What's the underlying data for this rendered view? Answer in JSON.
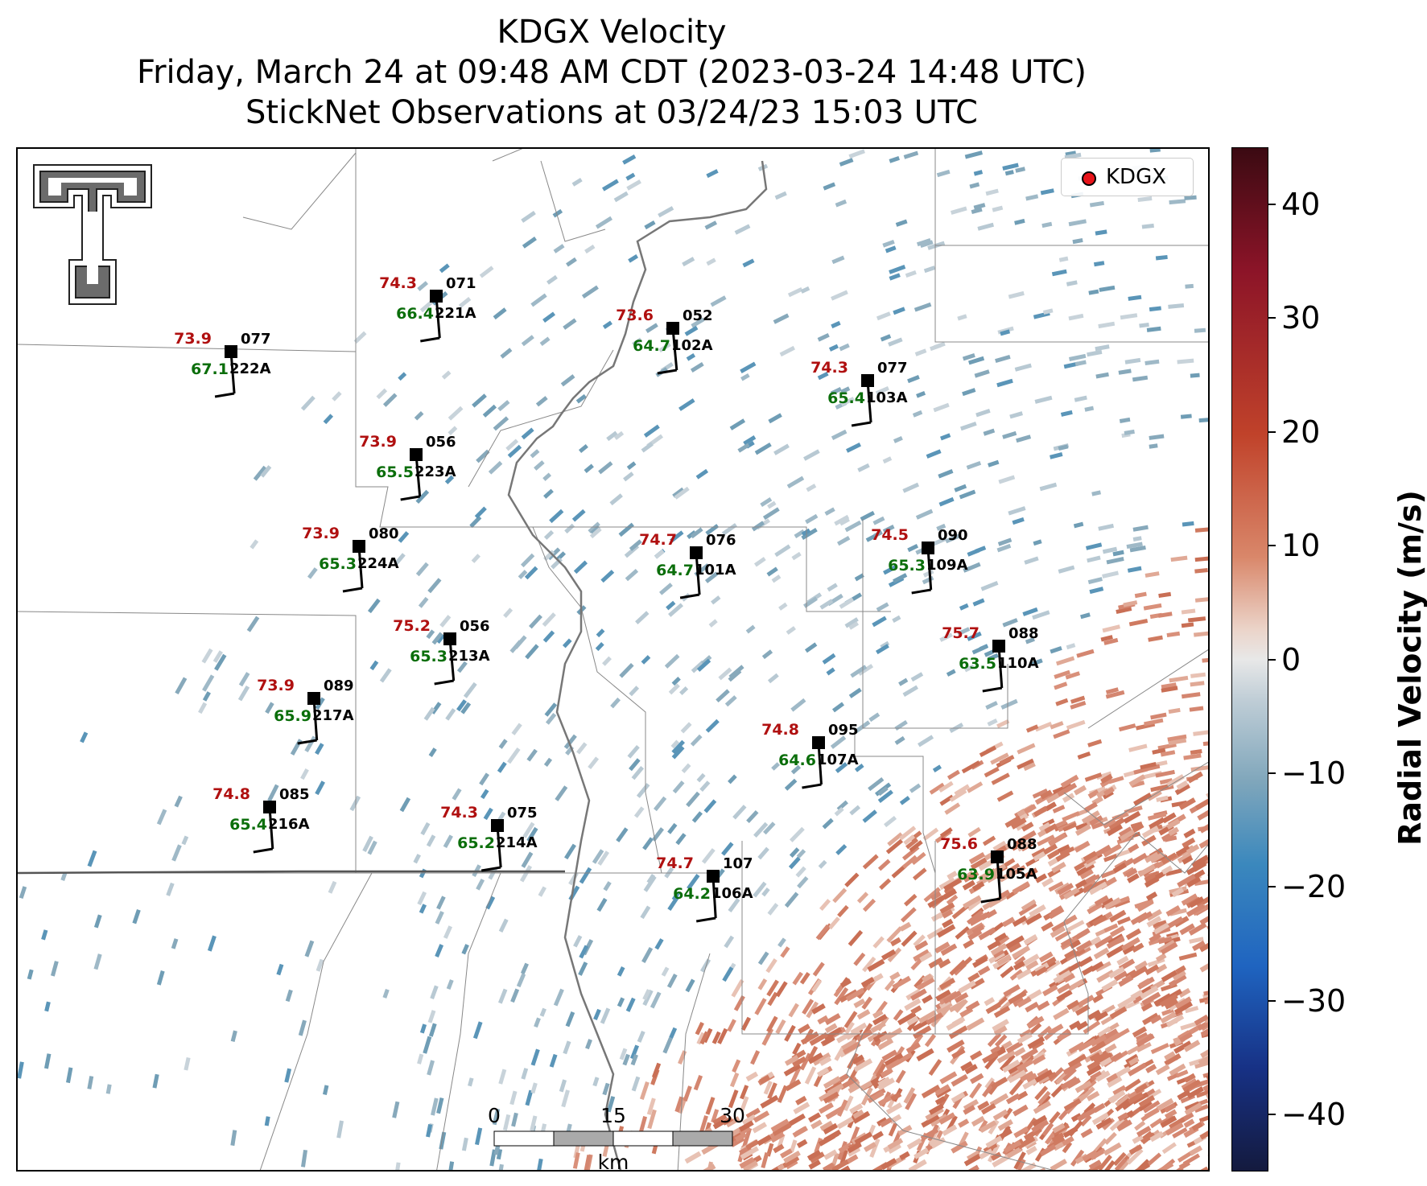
{
  "title_lines": [
    "KDGX Velocity",
    "Friday, March 24 at 09:48 AM CDT (2023-03-24 14:48 UTC)",
    "StickNet Observations at 03/24/23 15:03 UTC"
  ],
  "legend": {
    "label": "KDGX",
    "marker_color": "#e8141a"
  },
  "colorbar": {
    "title": "Radial Velocity (m/s)",
    "range": [
      -45,
      45
    ],
    "ticks": [
      "40",
      "30",
      "20",
      "10",
      "0",
      "−10",
      "−20",
      "−30",
      "−40"
    ],
    "colormap": [
      "#3b0a12",
      "#8c1428",
      "#c0422a",
      "#d9876a",
      "#e8e8e8",
      "#7fa6bb",
      "#3b88bd",
      "#1f64c0",
      "#141a3e"
    ]
  },
  "scalebar": {
    "labels": [
      "0",
      "15",
      "30"
    ],
    "unit": "km"
  },
  "logo": {
    "name": "texas-tech-double-t-logo",
    "color": "#666666"
  },
  "stations": [
    {
      "id": "221A",
      "temp": "74.3",
      "dew": "66.4",
      "dir": "071"
    },
    {
      "id": "222A",
      "temp": "73.9",
      "dew": "67.1",
      "dir": "077"
    },
    {
      "id": "102A",
      "temp": "73.6",
      "dew": "64.7",
      "dir": "052"
    },
    {
      "id": "103A",
      "temp": "74.3",
      "dew": "65.4",
      "dir": "077"
    },
    {
      "id": "223A",
      "temp": "73.9",
      "dew": "65.5",
      "dir": "056"
    },
    {
      "id": "224A",
      "temp": "73.9",
      "dew": "65.3",
      "dir": "080"
    },
    {
      "id": "101A",
      "temp": "74.7",
      "dew": "64.7",
      "dir": "076"
    },
    {
      "id": "109A",
      "temp": "74.5",
      "dew": "65.3",
      "dir": "090"
    },
    {
      "id": "213A",
      "temp": "75.2",
      "dew": "65.3",
      "dir": "056"
    },
    {
      "id": "110A",
      "temp": "75.7",
      "dew": "63.5",
      "dir": "088"
    },
    {
      "id": "217A",
      "temp": "73.9",
      "dew": "65.9",
      "dir": "089"
    },
    {
      "id": "107A",
      "temp": "74.8",
      "dew": "64.6",
      "dir": "095"
    },
    {
      "id": "216A",
      "temp": "74.8",
      "dew": "65.4",
      "dir": "085"
    },
    {
      "id": "214A",
      "temp": "74.3",
      "dew": "65.2",
      "dir": "075"
    },
    {
      "id": "105A",
      "temp": "75.6",
      "dew": "63.9",
      "dir": "088"
    },
    {
      "id": "106A",
      "temp": "74.7",
      "dew": "64.2",
      "dir": "107"
    }
  ]
}
